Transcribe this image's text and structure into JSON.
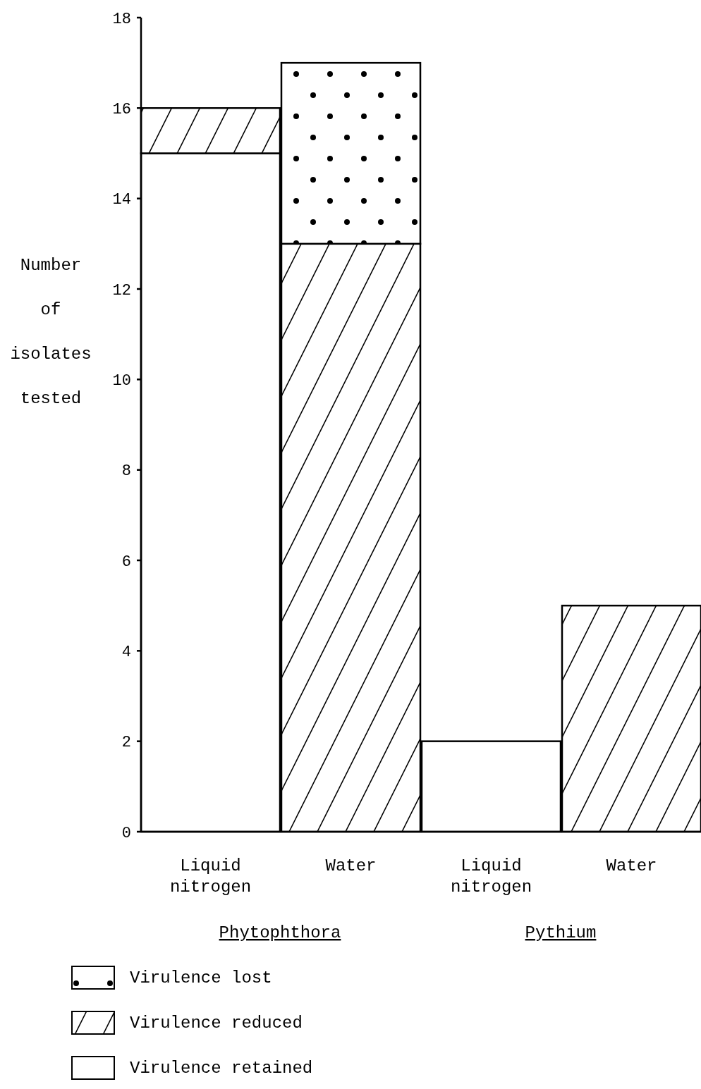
{
  "chart_data": {
    "type": "bar",
    "stacked": true,
    "ylabel": "Number\nof\nisolates\ntested",
    "categories": [
      "Liquid\nnitrogen",
      "Water",
      "Liquid\nnitrogen",
      "Water"
    ],
    "series": [
      {
        "name": "Virulence retained",
        "color": "#ffffff",
        "values": [
          15,
          0,
          2,
          0
        ]
      },
      {
        "name": "Virulence reduced",
        "color": "#000000",
        "values": [
          1,
          13,
          0,
          5
        ]
      },
      {
        "name": "Virulence lost",
        "color": "#000000",
        "values": [
          0,
          4,
          0,
          0
        ]
      }
    ],
    "ylim": [
      0,
      18
    ],
    "yticks": [
      0,
      2,
      4,
      6,
      8,
      10,
      12,
      14,
      16,
      18
    ],
    "annotations": [
      "Phytophthora",
      "Pythium"
    ],
    "legend": "bottom left"
  }
}
